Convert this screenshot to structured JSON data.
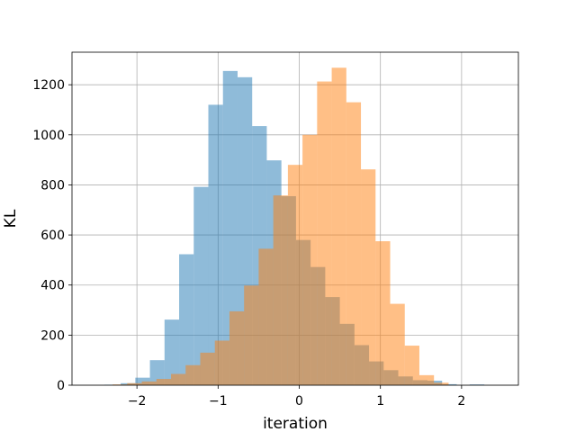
{
  "chart_data": {
    "type": "bar",
    "title": "",
    "xlabel": "iteration",
    "ylabel": "KL",
    "xlim": [
      -2.8,
      2.7
    ],
    "ylim": [
      0,
      1330
    ],
    "xticks": [
      -2,
      -1,
      0,
      1,
      2
    ],
    "yticks": [
      0,
      200,
      400,
      600,
      800,
      1000,
      1200
    ],
    "grid": true,
    "legend": "none",
    "series": [
      {
        "color": "#1f77b4",
        "alpha": 0.5,
        "bins": [
          {
            "x0": -2.4,
            "x1": -2.2,
            "count": 2
          },
          {
            "x0": -2.2,
            "x1": -2.02,
            "count": 8
          },
          {
            "x0": -2.02,
            "x1": -1.84,
            "count": 30
          },
          {
            "x0": -1.84,
            "x1": -1.66,
            "count": 100
          },
          {
            "x0": -1.66,
            "x1": -1.48,
            "count": 262
          },
          {
            "x0": -1.48,
            "x1": -1.3,
            "count": 523
          },
          {
            "x0": -1.3,
            "x1": -1.12,
            "count": 792
          },
          {
            "x0": -1.12,
            "x1": -0.94,
            "count": 1120
          },
          {
            "x0": -0.94,
            "x1": -0.76,
            "count": 1255
          },
          {
            "x0": -0.76,
            "x1": -0.58,
            "count": 1230
          },
          {
            "x0": -0.58,
            "x1": -0.4,
            "count": 1035
          },
          {
            "x0": -0.4,
            "x1": -0.22,
            "count": 898
          },
          {
            "x0": -0.22,
            "x1": -0.04,
            "count": 755
          },
          {
            "x0": -0.04,
            "x1": 0.14,
            "count": 580
          },
          {
            "x0": 0.14,
            "x1": 0.32,
            "count": 472
          },
          {
            "x0": 0.32,
            "x1": 0.5,
            "count": 352
          },
          {
            "x0": 0.5,
            "x1": 0.68,
            "count": 245
          },
          {
            "x0": 0.68,
            "x1": 0.86,
            "count": 160
          },
          {
            "x0": 0.86,
            "x1": 1.04,
            "count": 95
          },
          {
            "x0": 1.04,
            "x1": 1.22,
            "count": 60
          },
          {
            "x0": 1.22,
            "x1": 1.4,
            "count": 35
          },
          {
            "x0": 1.4,
            "x1": 1.58,
            "count": 20
          },
          {
            "x0": 1.58,
            "x1": 1.76,
            "count": 18
          },
          {
            "x0": 1.76,
            "x1": 1.94,
            "count": 4
          },
          {
            "x0": 2.1,
            "x1": 2.28,
            "count": 3
          }
        ]
      },
      {
        "color": "#ff7f0e",
        "alpha": 0.5,
        "bins": [
          {
            "x0": -2.3,
            "x1": -2.12,
            "count": 3
          },
          {
            "x0": -2.12,
            "x1": -1.94,
            "count": 8
          },
          {
            "x0": -1.94,
            "x1": -1.76,
            "count": 15
          },
          {
            "x0": -1.76,
            "x1": -1.58,
            "count": 25
          },
          {
            "x0": -1.58,
            "x1": -1.4,
            "count": 45
          },
          {
            "x0": -1.4,
            "x1": -1.22,
            "count": 80
          },
          {
            "x0": -1.22,
            "x1": -1.04,
            "count": 130
          },
          {
            "x0": -1.04,
            "x1": -0.86,
            "count": 178
          },
          {
            "x0": -0.86,
            "x1": -0.68,
            "count": 295
          },
          {
            "x0": -0.68,
            "x1": -0.5,
            "count": 398
          },
          {
            "x0": -0.5,
            "x1": -0.32,
            "count": 545
          },
          {
            "x0": -0.32,
            "x1": -0.14,
            "count": 758
          },
          {
            "x0": -0.14,
            "x1": 0.04,
            "count": 880
          },
          {
            "x0": 0.04,
            "x1": 0.22,
            "count": 1000
          },
          {
            "x0": 0.22,
            "x1": 0.4,
            "count": 1213
          },
          {
            "x0": 0.4,
            "x1": 0.58,
            "count": 1268
          },
          {
            "x0": 0.58,
            "x1": 0.76,
            "count": 1130
          },
          {
            "x0": 0.76,
            "x1": 0.94,
            "count": 862
          },
          {
            "x0": 0.94,
            "x1": 1.12,
            "count": 575
          },
          {
            "x0": 1.12,
            "x1": 1.3,
            "count": 325
          },
          {
            "x0": 1.3,
            "x1": 1.48,
            "count": 158
          },
          {
            "x0": 1.48,
            "x1": 1.66,
            "count": 40
          },
          {
            "x0": 1.66,
            "x1": 1.84,
            "count": 10
          }
        ]
      }
    ]
  }
}
